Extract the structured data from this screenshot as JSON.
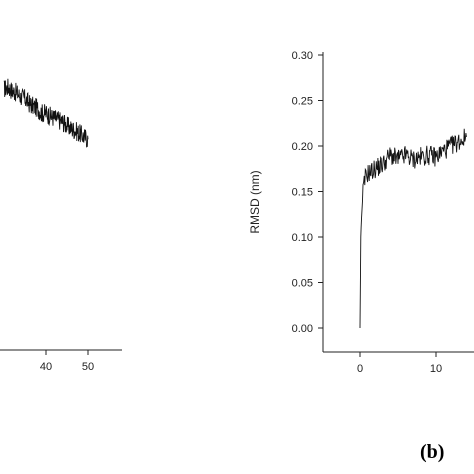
{
  "figure": {
    "panel_label": "(b)"
  },
  "chart_data": [
    {
      "type": "line",
      "panel": "left-partial",
      "xlabel": "",
      "ylabel": "",
      "x_ticks": [
        40,
        50
      ],
      "xlim": [
        0,
        55
      ],
      "ylim": [
        0.0,
        0.3
      ],
      "series": [
        {
          "x": [
            30,
            31,
            32,
            33,
            34,
            35,
            36,
            37,
            38,
            39,
            40,
            41,
            42,
            43,
            44,
            45,
            46,
            47,
            48,
            49,
            50
          ],
          "y": [
            0.27,
            0.272,
            0.268,
            0.266,
            0.262,
            0.26,
            0.255,
            0.252,
            0.25,
            0.245,
            0.245,
            0.242,
            0.24,
            0.238,
            0.236,
            0.232,
            0.229,
            0.227,
            0.224,
            0.221,
            0.218
          ]
        }
      ]
    },
    {
      "type": "line",
      "panel": "right",
      "xlabel": "",
      "ylabel": "RMSD (nm)",
      "y_ticks": [
        "0.00",
        "0.05",
        "0.10",
        "0.15",
        "0.20",
        "0.25",
        "0.30"
      ],
      "x_ticks": [
        0,
        10
      ],
      "xlim": [
        -3.5,
        14
      ],
      "ylim": [
        -0.015,
        0.31
      ],
      "series": [
        {
          "x": [
            0,
            0.1,
            0.2,
            0.4,
            0.7,
            1,
            1.5,
            2,
            3,
            4,
            5,
            6,
            7,
            8,
            9,
            10,
            11,
            12,
            13,
            14
          ],
          "y": [
            0.0,
            0.1,
            0.12,
            0.15,
            0.165,
            0.17,
            0.172,
            0.175,
            0.18,
            0.19,
            0.185,
            0.19,
            0.185,
            0.188,
            0.19,
            0.188,
            0.195,
            0.2,
            0.205,
            0.21
          ]
        }
      ]
    }
  ]
}
